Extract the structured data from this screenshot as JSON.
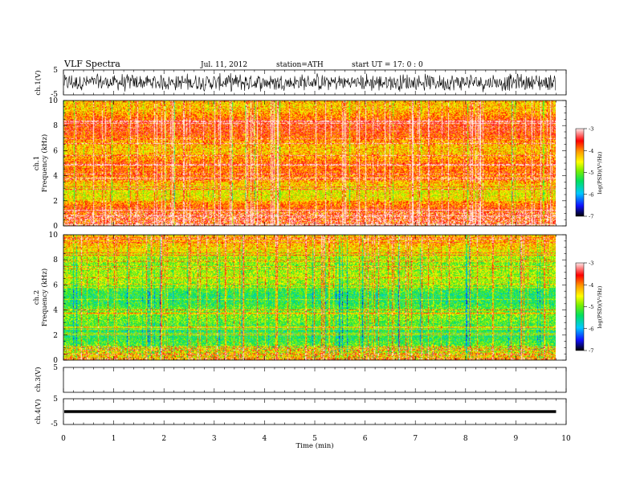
{
  "header": {
    "title": "VLF  Spectra",
    "date": "Jul.  11, 2012",
    "station": "station=ATH",
    "start": "start  UT  =    17: 0  : 0"
  },
  "chart_data": [
    {
      "type": "line",
      "name": "ch1-waveform",
      "ylabel": "ch.1(V)",
      "ylim": [
        -5,
        5
      ],
      "yticks": [
        "5",
        "-5"
      ],
      "xlim": [
        0,
        10
      ],
      "note_amplitude_range_V": [
        -4,
        4
      ]
    },
    {
      "type": "heatmap",
      "name": "ch1-spectrogram",
      "ylabel": "ch.1\nFrequency  (kHz)",
      "ylabel_lines": [
        "ch.1",
        "Frequency  (kHz)"
      ],
      "ylim": [
        0,
        10
      ],
      "yticks": [
        "0",
        "2",
        "4",
        "6",
        "8",
        "10"
      ],
      "xlim": [
        0,
        10
      ],
      "data_extent_min": [
        0,
        9.8
      ],
      "colorbar": {
        "label": "log(PSD)(V²/Hz)",
        "range": [
          -7,
          -3
        ],
        "ticks": [
          "-3",
          "-4",
          "-5",
          "-6",
          "-7"
        ]
      }
    },
    {
      "type": "heatmap",
      "name": "ch2-spectrogram",
      "ylabel_lines": [
        "ch.2",
        "Frequency  (kHz)"
      ],
      "ylim": [
        0,
        10
      ],
      "yticks": [
        "0",
        "2",
        "4",
        "6",
        "8",
        "10"
      ],
      "xlim": [
        0,
        10
      ],
      "data_extent_min": [
        0,
        9.8
      ],
      "colorbar": {
        "label": "log(PSD)(V²/Hz)",
        "range": [
          -7,
          -3
        ],
        "ticks": [
          "-3",
          "-4",
          "-5",
          "-6",
          "-7"
        ]
      }
    },
    {
      "type": "line",
      "name": "ch3-waveform",
      "ylabel": "ch.3(V)",
      "ylim": [
        -5,
        5
      ],
      "yticks": [
        "5"
      ],
      "xlim": [
        0,
        10
      ]
    },
    {
      "type": "line",
      "name": "ch4-waveform",
      "ylabel": "ch.4(V)",
      "ylim": [
        -5,
        5
      ],
      "yticks": [
        "5",
        "-5"
      ],
      "xlim": [
        0,
        10
      ],
      "constant_value_V": 0,
      "x_end_min": 9.8
    }
  ],
  "xaxis": {
    "label": "Time  (min)",
    "ticks": [
      "0",
      "1",
      "2",
      "3",
      "4",
      "5",
      "6",
      "7",
      "8",
      "9",
      "10"
    ]
  },
  "colors": {
    "scale": [
      "#000000",
      "#1010ff",
      "#00c8ff",
      "#00e060",
      "#7cf000",
      "#ffff00",
      "#ff9900",
      "#ff0000",
      "#ffffff"
    ]
  }
}
